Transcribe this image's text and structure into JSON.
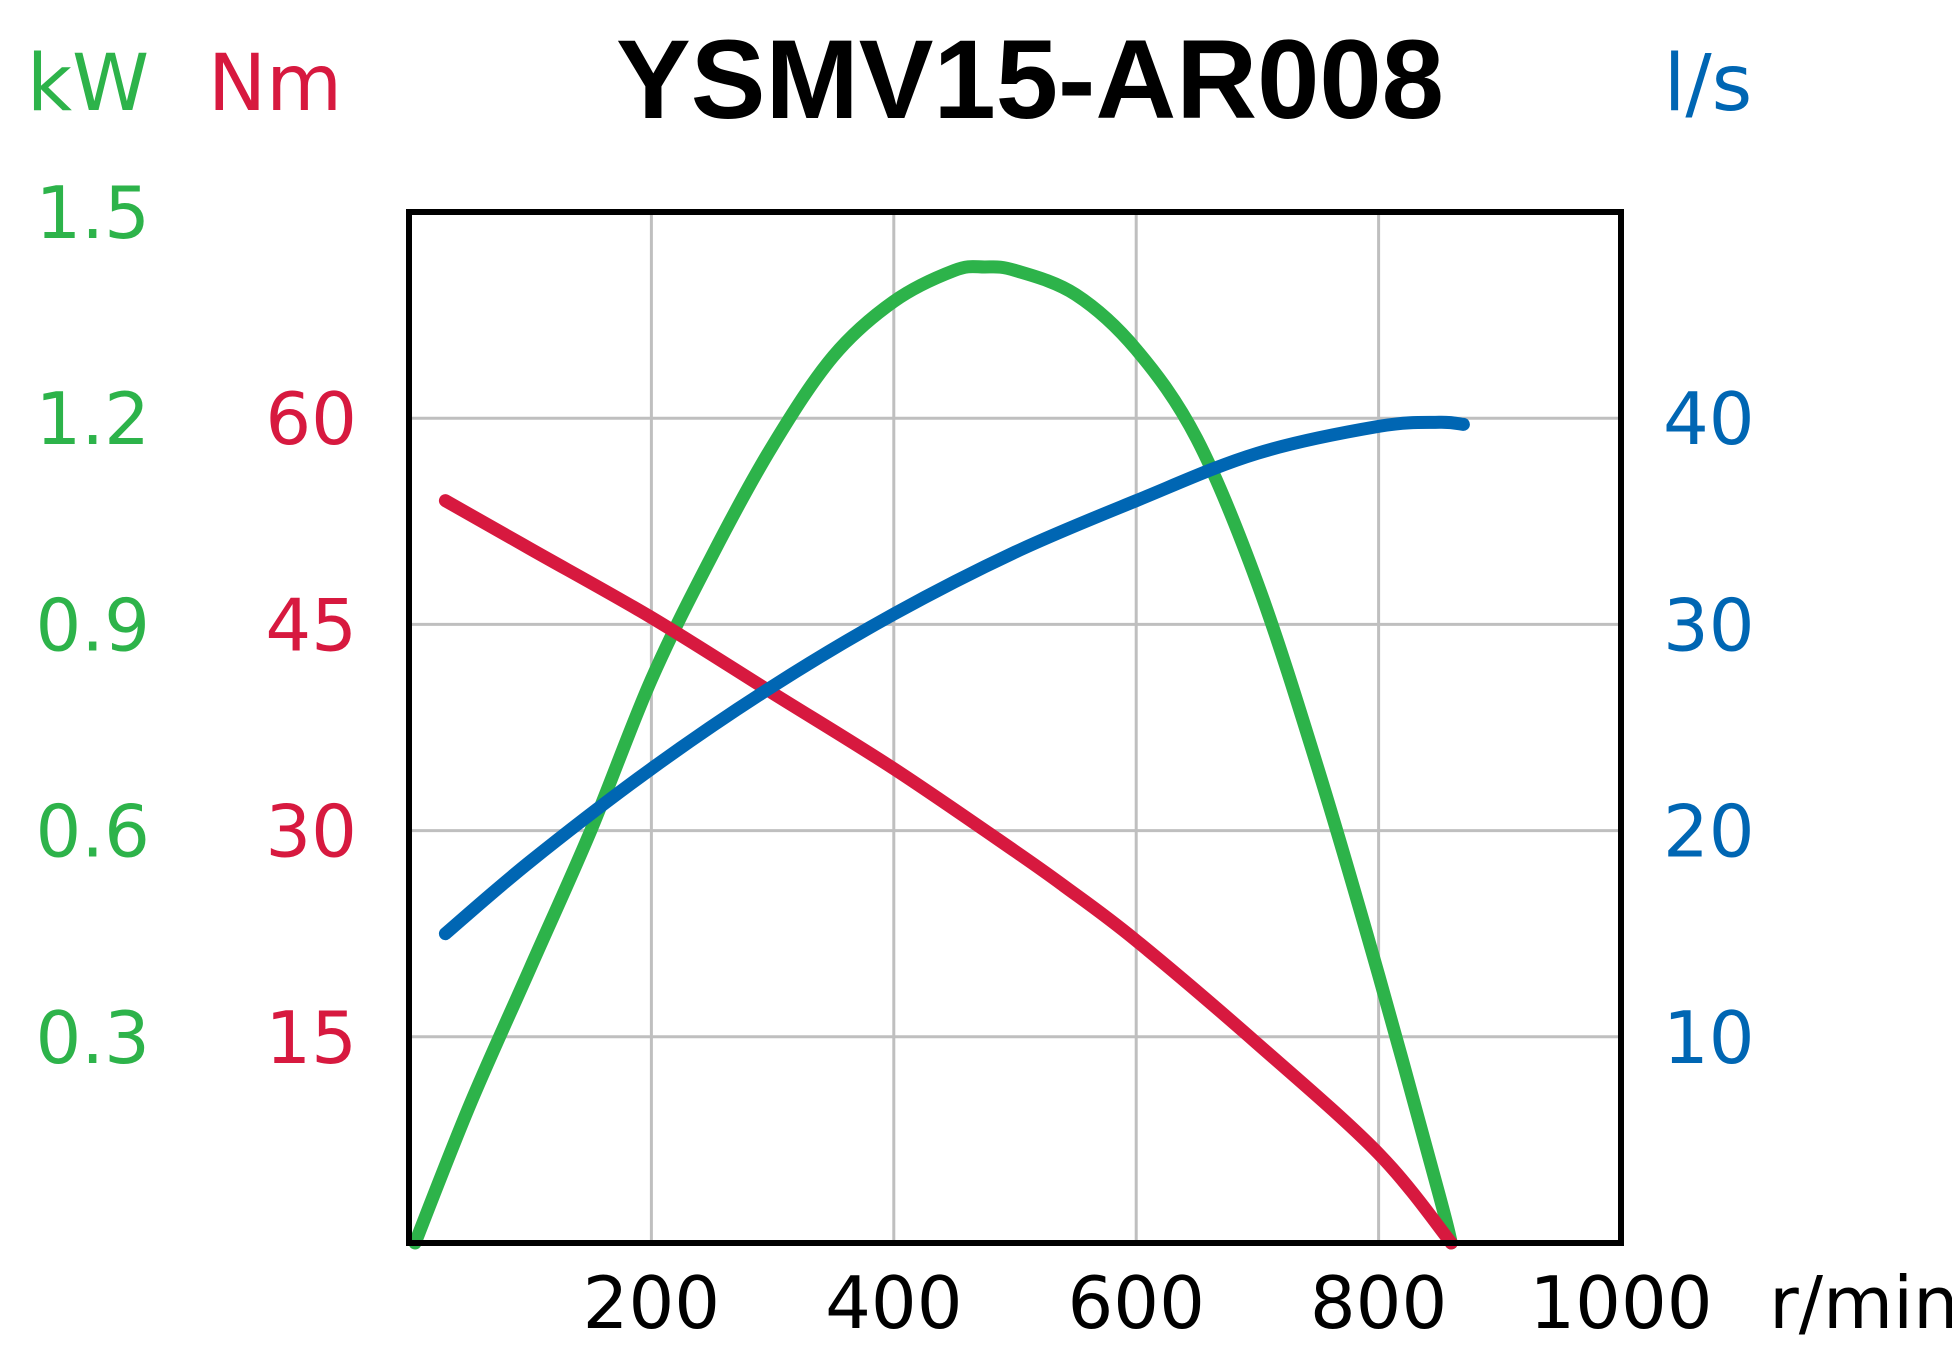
{
  "colors": {
    "power": "#2db34a",
    "torque": "#d7193f",
    "airflow": "#0066b3",
    "frame": "#000000",
    "grid": "#bfbfbf"
  },
  "chart_data": {
    "type": "line",
    "title": "YSMV15-AR008",
    "x_unit": "r/min",
    "x_ticks": [
      "200",
      "400",
      "600",
      "800",
      "1000"
    ],
    "xlim": [
      0,
      1000
    ],
    "grid": true,
    "axes": {
      "power": {
        "unit": "kW",
        "ticks": [
          "0.3",
          "0.6",
          "0.9",
          "1.2",
          "1.5"
        ],
        "ylim": [
          0,
          1.5
        ]
      },
      "torque": {
        "unit": "Nm",
        "ticks": [
          "15",
          "30",
          "45",
          "60"
        ],
        "ylim": [
          0,
          75
        ]
      },
      "airflow": {
        "unit": "l/s",
        "ticks": [
          "10",
          "20",
          "30",
          "40"
        ],
        "ylim": [
          0,
          50
        ]
      }
    },
    "series": [
      {
        "key": "power",
        "axis": "power",
        "x": [
          5,
          50,
          100,
          150,
          200,
          250,
          300,
          350,
          400,
          450,
          475,
          500,
          550,
          600,
          650,
          700,
          750,
          800,
          850,
          860
        ],
        "y": [
          0.0,
          0.2,
          0.4,
          0.6,
          0.82,
          1.0,
          1.16,
          1.29,
          1.37,
          1.415,
          1.42,
          1.415,
          1.38,
          1.3,
          1.17,
          0.96,
          0.69,
          0.39,
          0.07,
          0.0
        ]
      },
      {
        "key": "torque",
        "axis": "torque",
        "x": [
          30,
          100,
          200,
          300,
          400,
          500,
          540,
          600,
          700,
          800,
          860
        ],
        "y": [
          54,
          50.5,
          45.5,
          40,
          34.5,
          28.5,
          26,
          22,
          14.5,
          6.5,
          0
        ]
      },
      {
        "key": "airflow",
        "axis": "airflow",
        "x": [
          30,
          100,
          200,
          300,
          400,
          500,
          600,
          700,
          800,
          850,
          870
        ],
        "y": [
          15,
          18.5,
          23,
          27,
          30.5,
          33.5,
          36,
          38.3,
          39.6,
          39.8,
          39.7
        ]
      }
    ]
  }
}
